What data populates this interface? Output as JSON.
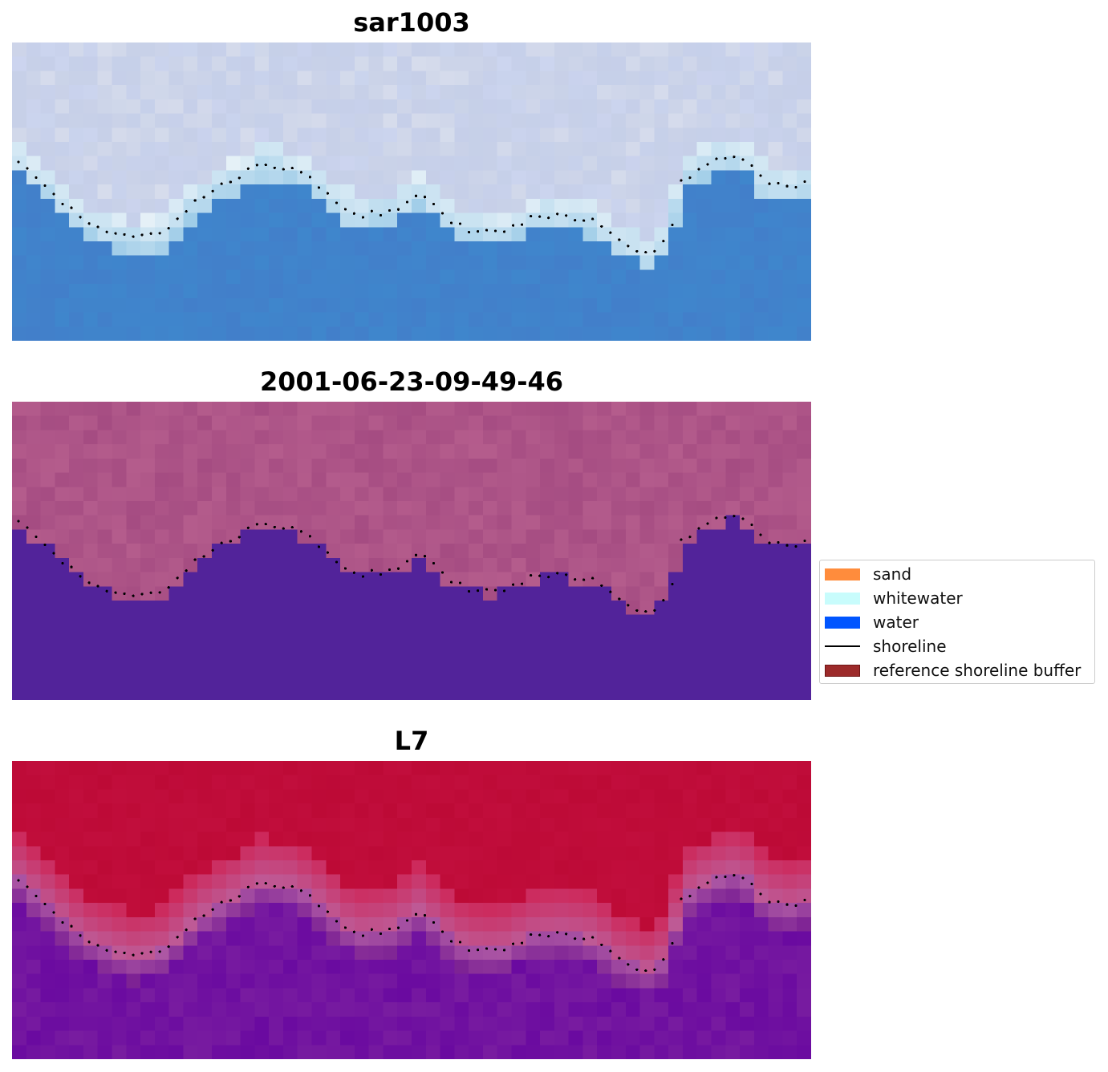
{
  "panels": [
    {
      "title": "sar1003",
      "style": "rgb"
    },
    {
      "title": "2001-06-23-09-49-46",
      "style": "classified"
    },
    {
      "title": "L7",
      "style": "index"
    }
  ],
  "legend": {
    "items": [
      {
        "label": "sand",
        "kind": "patch",
        "color": "#ff8c3c",
        "edge": "#ff8c3c"
      },
      {
        "label": "whitewater",
        "kind": "patch",
        "color": "#c8fcfc",
        "edge": "#c8fcfc"
      },
      {
        "label": "water",
        "kind": "patch",
        "color": "#0055ff",
        "edge": "#0055ff"
      },
      {
        "label": "shoreline",
        "kind": "line",
        "color": "#000000"
      },
      {
        "label": "reference shoreline buffer",
        "kind": "patch",
        "color": "#9c2a2a",
        "edge": "#6e1414"
      }
    ]
  },
  "chart_data": {
    "type": "heatmap",
    "grid_on": false,
    "legend_placement": "center-right",
    "colors": {
      "water_class": "#52239a",
      "land_class": "#b45c8c",
      "index_land": "#bd0a36",
      "index_water": "#6a0aa0",
      "rgb_water": "#3f86cc",
      "rgb_land": "#d6dcec",
      "shoreline_points": "#000000"
    }
  }
}
